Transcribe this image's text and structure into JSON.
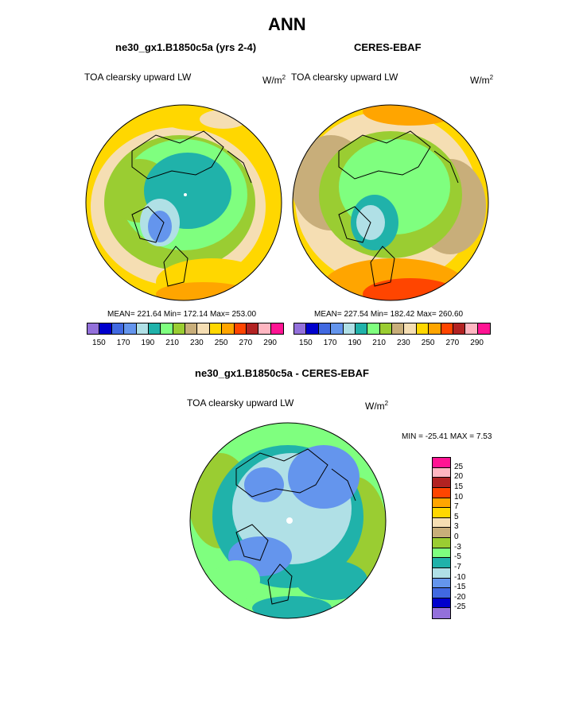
{
  "title": "ANN",
  "panels": [
    {
      "heading": "ne30_gx1.B1850c5a (yrs 2-4)",
      "variable": "TOA clearsky upward LW",
      "units_base": "W/m",
      "units_exp": "2",
      "stats": "MEAN= 221.64  Min= 172.14  Max= 253.00"
    },
    {
      "heading": "CERES-EBAF",
      "variable": "TOA clearsky upward LW",
      "units_base": "W/m",
      "units_exp": "2",
      "stats": "MEAN= 227.54  Min= 182.42  Max= 260.60"
    }
  ],
  "horizontal_colorbar": {
    "colors": [
      "#9370db",
      "#0000cd",
      "#4169e1",
      "#6495ed",
      "#b0e0e6",
      "#20b2aa",
      "#7fff7f",
      "#9acd32",
      "#c8ae7a",
      "#f5deb3",
      "#ffd700",
      "#ffa500",
      "#ff4500",
      "#b22222",
      "#ffb6c1",
      "#ff1493"
    ],
    "tick_labels": [
      "150",
      "170",
      "190",
      "210",
      "230",
      "250",
      "270",
      "290"
    ]
  },
  "difference": {
    "heading": "ne30_gx1.B1850c5a - CERES-EBAF",
    "variable": "TOA clearsky upward LW",
    "units_base": "W/m",
    "units_exp": "2",
    "minmax": "MIN = -25.41 MAX =   7.53",
    "colorbar": {
      "colors_top_to_bottom": [
        "#ff1493",
        "#ffb6c1",
        "#b22222",
        "#ff4500",
        "#ffa500",
        "#ffd700",
        "#f5deb3",
        "#c8ae7a",
        "#9acd32",
        "#7fff7f",
        "#20b2aa",
        "#b0e0e6",
        "#6495ed",
        "#4169e1",
        "#0000cd",
        "#9370db"
      ],
      "tick_labels": [
        "25",
        "20",
        "15",
        "10",
        "7",
        "5",
        "3",
        "0",
        "-3",
        "-5",
        "-7",
        "-10",
        "-15",
        "-20",
        "-25"
      ]
    }
  }
}
